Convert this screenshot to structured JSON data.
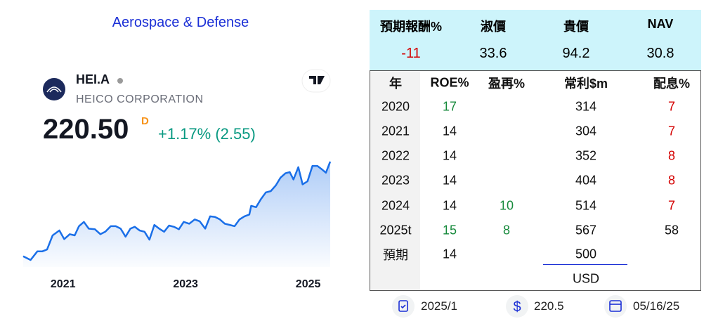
{
  "header": {
    "title": "Aerospace & Defense"
  },
  "ticker": {
    "symbol": "HEI.A",
    "name": "HEICO CORPORATION",
    "price": "220.50",
    "price_suffix": "D",
    "change": "+1.17% (2.55)"
  },
  "chart_data": {
    "type": "area",
    "color": "#1a6fe8",
    "x": [
      2020.35,
      2020.47,
      2020.58,
      2020.66,
      2020.74,
      2020.83,
      2020.94,
      2021.02,
      2021.11,
      2021.19,
      2021.26,
      2021.34,
      2021.42,
      2021.52,
      2021.61,
      2021.69,
      2021.78,
      2021.86,
      2021.94,
      2022.02,
      2022.1,
      2022.17,
      2022.25,
      2022.33,
      2022.41,
      2022.49,
      2022.57,
      2022.65,
      2022.73,
      2022.81,
      2022.89,
      2022.97,
      2023.06,
      2023.15,
      2023.23,
      2023.32,
      2023.4,
      2023.48,
      2023.56,
      2023.64,
      2023.72,
      2023.8,
      2023.88,
      2023.96,
      2024.04,
      2024.07,
      2024.15,
      2024.23,
      2024.31,
      2024.39,
      2024.47,
      2024.55,
      2024.63,
      2024.7,
      2024.76,
      2024.84,
      2024.91,
      2024.99,
      2025.07,
      2025.15,
      2025.23,
      2025.29,
      2025.36
    ],
    "values": [
      66,
      60,
      74,
      74,
      77,
      100,
      108,
      94,
      102,
      100,
      115,
      122,
      111,
      110,
      102,
      106,
      115,
      115,
      111,
      98,
      111,
      114,
      108,
      106,
      93,
      117,
      111,
      106,
      116,
      114,
      110,
      122,
      119,
      126,
      123,
      111,
      131,
      130,
      126,
      119,
      117,
      115,
      126,
      131,
      134,
      148,
      146,
      159,
      170,
      172,
      181,
      194,
      201,
      203,
      191,
      211,
      183,
      188,
      213,
      213,
      207,
      202,
      220
    ],
    "xticks": [
      2021,
      2023,
      2025
    ]
  },
  "valuation": {
    "labels": [
      "預期報酬%",
      "淑價",
      "貴價",
      "NAV"
    ],
    "values": [
      -11,
      33.6,
      94.2,
      30.8
    ]
  },
  "table": {
    "columns": [
      "年",
      "ROE%",
      "盈再%",
      "常利$m",
      "配息%"
    ],
    "rows": [
      [
        "2020",
        17,
        null,
        314,
        7
      ],
      [
        "2021",
        14,
        null,
        304,
        7
      ],
      [
        "2022",
        14,
        null,
        352,
        8
      ],
      [
        "2023",
        14,
        null,
        404,
        8
      ],
      [
        "2024",
        14,
        10,
        514,
        7
      ],
      [
        "2025t",
        15,
        8,
        567,
        58
      ],
      [
        "預期",
        14,
        null,
        500,
        null
      ]
    ],
    "unit": "USD"
  },
  "footer": {
    "items": [
      "2025/1",
      "220.5",
      "05/16/25"
    ]
  }
}
